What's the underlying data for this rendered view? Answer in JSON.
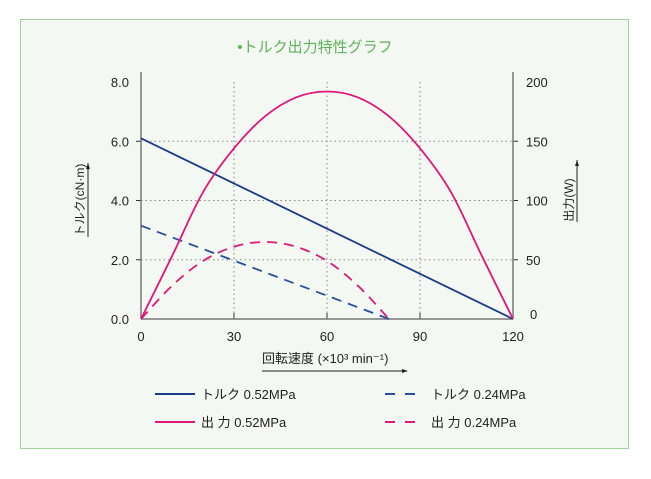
{
  "chart_data": {
    "type": "line",
    "title": "•トルク出力特性グラフ",
    "xlabel": "回転速度 (×10³ min⁻¹)",
    "ylabel_left": "トルク(cN·m)",
    "ylabel_right": "出力(W)",
    "xlim": [
      0,
      120
    ],
    "ylim_left": [
      0,
      8
    ],
    "ylim_right": [
      0,
      200
    ],
    "x_ticks": [
      "0",
      "30",
      "60",
      "90",
      "120"
    ],
    "y_left_ticks": [
      "0.0",
      "2.0",
      "4.0",
      "6.0",
      "8.0"
    ],
    "y_right_ticks": [
      "0",
      "50",
      "100",
      "150",
      "200"
    ],
    "grid": true,
    "legend_position": "bottom",
    "series": [
      {
        "name": "トルク 0.52MPa",
        "axis": "left",
        "color": "#1a3a8a",
        "dash": false,
        "x": [
          0,
          120
        ],
        "y": [
          6.1,
          0
        ]
      },
      {
        "name": "トルク 0.24MPa",
        "axis": "left",
        "color": "#2a4fa0",
        "dash": true,
        "x": [
          0,
          80
        ],
        "y": [
          3.15,
          0
        ]
      },
      {
        "name": "出 力 0.52MPa",
        "axis": "right",
        "color": "#e0177a",
        "dash": false,
        "x": [
          0,
          10,
          20,
          30,
          40,
          50,
          60,
          70,
          80,
          90,
          100,
          110,
          120
        ],
        "y": [
          0,
          53,
          107,
          144,
          171,
          187,
          192,
          187,
          171,
          144,
          107,
          53,
          0
        ]
      },
      {
        "name": "出 力 0.24MPa",
        "axis": "right",
        "color": "#e0177a",
        "dash": true,
        "x": [
          0,
          10,
          20,
          30,
          40,
          50,
          60,
          70,
          80
        ],
        "y": [
          0,
          28,
          49,
          61,
          65,
          61,
          49,
          28,
          0
        ]
      }
    ]
  }
}
